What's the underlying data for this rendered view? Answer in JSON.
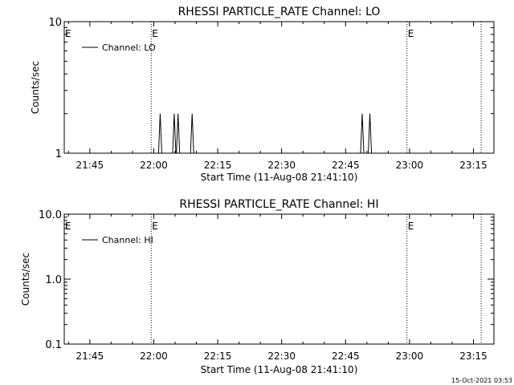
{
  "footer": {
    "timestamp": "15-Oct-2021 03:53"
  },
  "chart_data": [
    {
      "type": "line",
      "title": "RHESSI PARTICLE_RATE Channel: LO",
      "xlabel": "Start Time (11-Aug-08 21:41:10)",
      "ylabel": "Counts/sec",
      "yscale": "log",
      "ylim": [
        1,
        10
      ],
      "xlim_minutes": [
        21.65,
        23.33
      ],
      "xticks": [
        {
          "t": 21.75,
          "label": "21:45"
        },
        {
          "t": 22.0,
          "label": "22:00"
        },
        {
          "t": 22.25,
          "label": "22:15"
        },
        {
          "t": 22.5,
          "label": "22:30"
        },
        {
          "t": 22.75,
          "label": "22:45"
        },
        {
          "t": 23.0,
          "label": "23:00"
        },
        {
          "t": 23.25,
          "label": "23:15"
        }
      ],
      "yticks": [
        {
          "v": 1,
          "label": "1"
        },
        {
          "v": 10,
          "label": "10"
        }
      ],
      "legend": {
        "entry": "Channel: LO",
        "position": "top-left"
      },
      "markers": [
        {
          "t": 21.99,
          "label": "E",
          "label_at_axis": true
        },
        {
          "t": 22.99,
          "label": "E"
        },
        {
          "t": 23.28,
          "label": ""
        }
      ],
      "spikes": [
        {
          "t": 22.025,
          "value": 2
        },
        {
          "t": 22.08,
          "value": 2
        },
        {
          "t": 22.095,
          "value": 2
        },
        {
          "t": 22.15,
          "value": 2
        },
        {
          "t": 22.815,
          "value": 2
        },
        {
          "t": 22.845,
          "value": 2
        }
      ],
      "baseline": 1
    },
    {
      "type": "line",
      "title": "RHESSI PARTICLE_RATE Channel: HI",
      "xlabel": "Start Time (11-Aug-08 21:41:10)",
      "ylabel": "Counts/sec",
      "yscale": "log",
      "ylim": [
        0.1,
        10
      ],
      "xlim_minutes": [
        21.65,
        23.33
      ],
      "xticks": [
        {
          "t": 21.75,
          "label": "21:45"
        },
        {
          "t": 22.0,
          "label": "22:00"
        },
        {
          "t": 22.25,
          "label": "22:15"
        },
        {
          "t": 22.5,
          "label": "22:30"
        },
        {
          "t": 22.75,
          "label": "22:45"
        },
        {
          "t": 23.0,
          "label": "23:00"
        },
        {
          "t": 23.25,
          "label": "23:15"
        }
      ],
      "yticks": [
        {
          "v": 0.1,
          "label": "0.1"
        },
        {
          "v": 1,
          "label": "1.0"
        },
        {
          "v": 10,
          "label": "10.0"
        }
      ],
      "legend": {
        "entry": "Channel: HI",
        "position": "top-left"
      },
      "markers": [
        {
          "t": 21.99,
          "label": "E",
          "label_at_axis": true
        },
        {
          "t": 22.99,
          "label": "E"
        },
        {
          "t": 23.28,
          "label": ""
        }
      ],
      "spikes": [],
      "baseline": null
    }
  ]
}
